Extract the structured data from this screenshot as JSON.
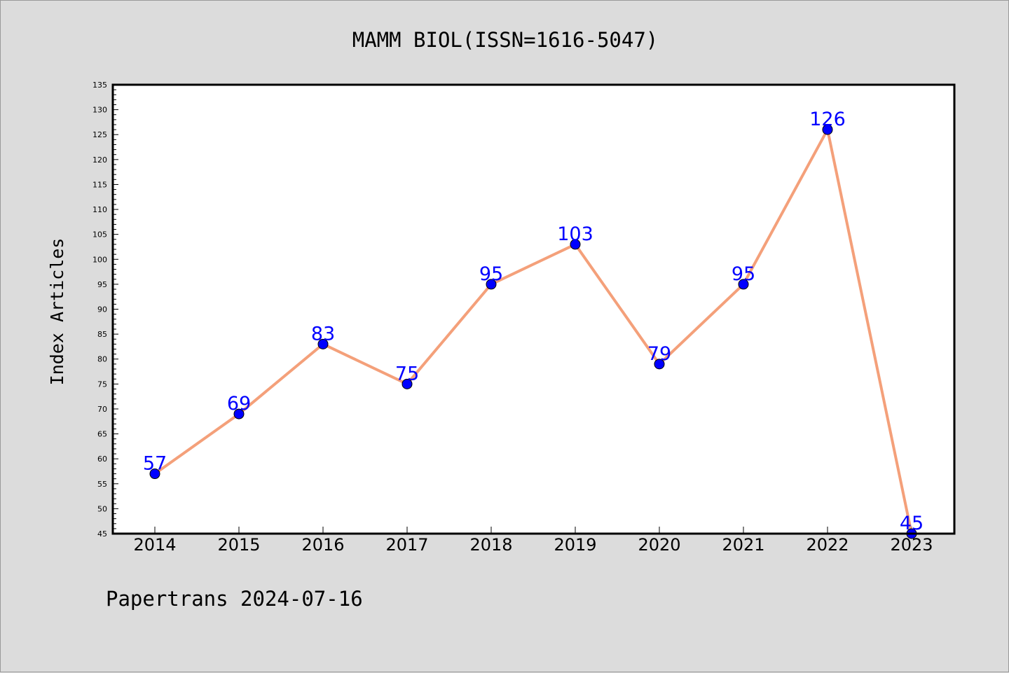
{
  "chart_data": {
    "type": "line",
    "title": "MAMM BIOL(ISSN=1616-5047)",
    "xlabel": "",
    "ylabel": "Index Articles",
    "categories": [
      "2014",
      "2015",
      "2016",
      "2017",
      "2018",
      "2019",
      "2020",
      "2021",
      "2022",
      "2023"
    ],
    "series": [
      {
        "values": [
          57,
          69,
          83,
          75,
          95,
          103,
          79,
          95,
          126,
          45
        ],
        "line_color": "#f4a07a",
        "marker_color": "#0000ff"
      }
    ],
    "ylim": [
      45,
      135
    ],
    "yticks": [
      45,
      50,
      55,
      60,
      65,
      70,
      75,
      80,
      85,
      90,
      95,
      100,
      105,
      110,
      115,
      120,
      125,
      130,
      135
    ],
    "grid": false,
    "data_labels": true
  },
  "footer": {
    "text": "Papertrans 2024-07-16"
  },
  "colors": {
    "background": "#dcdcdc",
    "plot_background": "#ffffff",
    "label_color": "#0000ff"
  }
}
